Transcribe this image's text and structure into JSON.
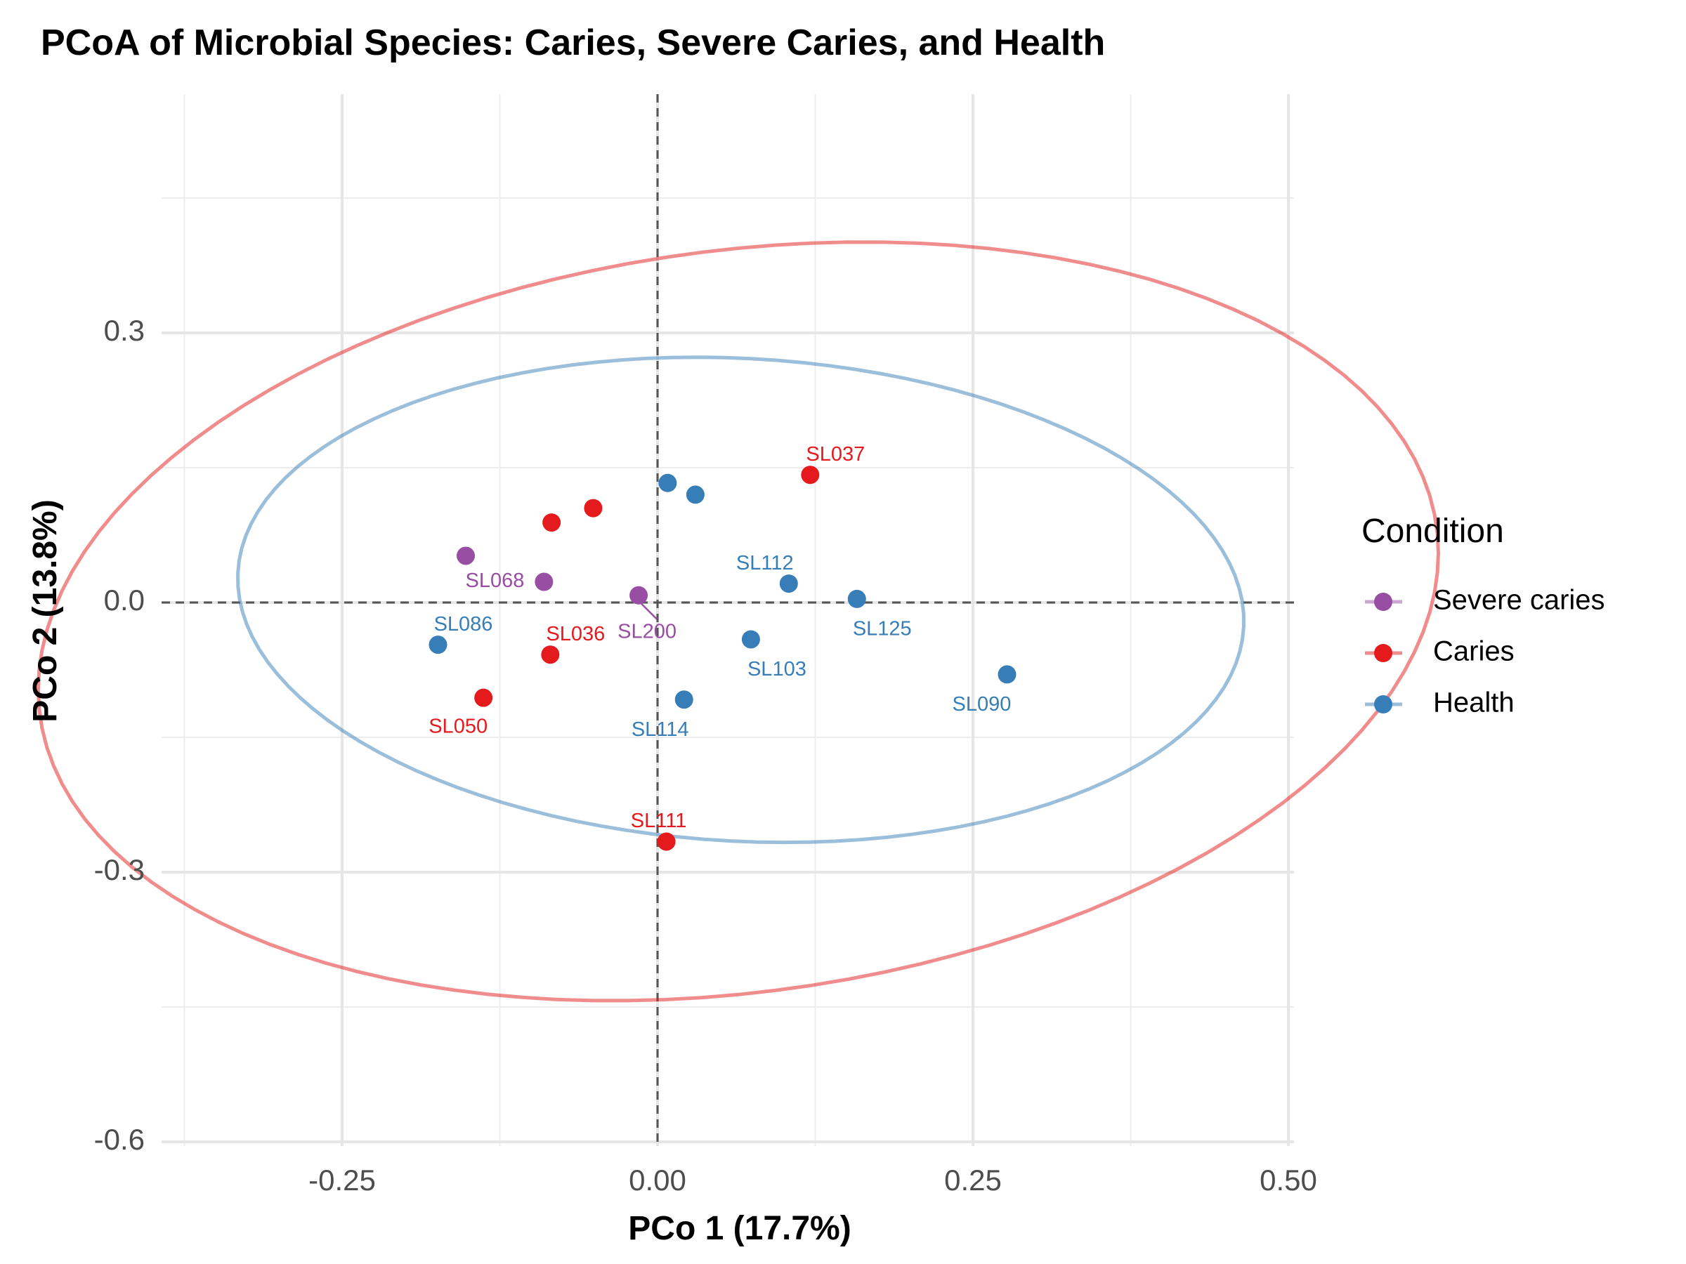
{
  "chart_data": {
    "type": "scatter",
    "title": "PCoA of Microbial Species: Caries, Severe Caries, and Health",
    "xlabel": "PCo 1 (17.7%)",
    "ylabel": "PCo 2 (13.8%)",
    "xlim": [
      -0.375,
      0.505
    ],
    "ylim": [
      -0.6,
      0.565
    ],
    "x_ticks": [
      -0.25,
      0.0,
      0.25,
      0.5
    ],
    "x_tick_labels": [
      "-0.25",
      "0.00",
      "0.25",
      "0.50"
    ],
    "y_ticks": [
      -0.6,
      -0.3,
      0.0,
      0.3
    ],
    "y_tick_labels": [
      "-0.6",
      "-0.3",
      "0.0",
      "0.3"
    ],
    "reference_lines": {
      "x": 0,
      "y": 0,
      "style": "dashed"
    },
    "grid": true,
    "legend": {
      "title": "Condition",
      "position": "right"
    },
    "series": [
      {
        "name": "Severe caries",
        "color": "#984EA3",
        "points": [
          {
            "x": -0.152,
            "y": 0.052,
            "label": ""
          },
          {
            "x": -0.09,
            "y": 0.023,
            "label": "SL068"
          },
          {
            "x": -0.015,
            "y": 0.008,
            "label": "SL200"
          }
        ]
      },
      {
        "name": "Caries",
        "color": "#E41A1C",
        "points": [
          {
            "x": -0.084,
            "y": 0.089,
            "label": ""
          },
          {
            "x": -0.051,
            "y": 0.105,
            "label": ""
          },
          {
            "x": 0.121,
            "y": 0.142,
            "label": "SL037"
          },
          {
            "x": -0.085,
            "y": -0.058,
            "label": "SL036"
          },
          {
            "x": -0.138,
            "y": -0.106,
            "label": "SL050"
          },
          {
            "x": 0.007,
            "y": -0.266,
            "label": "SL111"
          }
        ]
      },
      {
        "name": "Health",
        "color": "#377EB8",
        "points": [
          {
            "x": 0.008,
            "y": 0.133,
            "label": ""
          },
          {
            "x": 0.03,
            "y": 0.12,
            "label": ""
          },
          {
            "x": 0.104,
            "y": 0.021,
            "label": "SL112"
          },
          {
            "x": 0.158,
            "y": 0.004,
            "label": "SL125"
          },
          {
            "x": -0.174,
            "y": -0.047,
            "label": "SL086"
          },
          {
            "x": 0.074,
            "y": -0.041,
            "label": "SL103"
          },
          {
            "x": 0.021,
            "y": -0.108,
            "label": "SL114"
          },
          {
            "x": 0.277,
            "y": -0.08,
            "label": "SL090"
          }
        ]
      }
    ],
    "ellipses": [
      {
        "name": "Caries",
        "color": "#E41A1C",
        "center": [
          0.064,
          -0.021
        ],
        "rx": 0.407,
        "ry": 0.566,
        "angle_deg": -73.5
      },
      {
        "name": "Health",
        "color": "#377EB8",
        "center": [
          0.066,
          0.003
        ],
        "rx": 0.4,
        "ry": 0.268,
        "angle_deg": -6.2
      }
    ]
  }
}
